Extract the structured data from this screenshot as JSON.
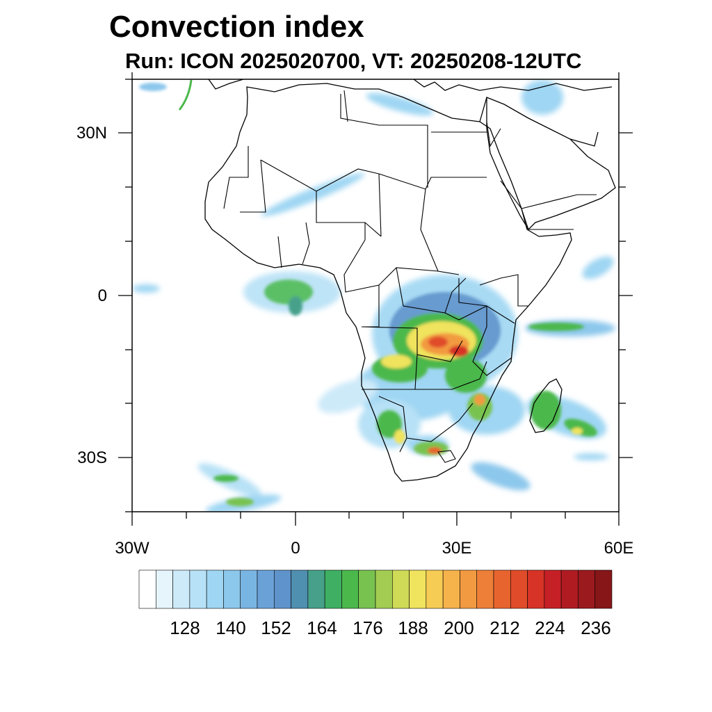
{
  "title": "Convection index",
  "subtitle": "Run: ICON 2025020700,  VT: 20250208-12UTC",
  "lat_labels": [
    "30N",
    "0",
    "30S"
  ],
  "lon_labels": [
    "30W",
    "0",
    "30E",
    "60E"
  ],
  "colorbar": {
    "labels": [
      "128",
      "140",
      "152",
      "164",
      "176",
      "188",
      "200",
      "212",
      "224",
      "236"
    ],
    "colors": [
      "#ffffff",
      "#e6f4fc",
      "#cdeaf9",
      "#b7e1f6",
      "#9fd6f3",
      "#8cc7ec",
      "#79b5e3",
      "#6aa2d8",
      "#5f93cb",
      "#4f8fb0",
      "#46a08a",
      "#3fb063",
      "#4bb84c",
      "#78c24f",
      "#a3cd52",
      "#cfda57",
      "#f0e35d",
      "#f7cc54",
      "#f6b24b",
      "#f29a41",
      "#ee7f38",
      "#e8642e",
      "#e04c29",
      "#d73326",
      "#c52025",
      "#b01b22",
      "#9b1a1e",
      "#861618"
    ]
  }
}
